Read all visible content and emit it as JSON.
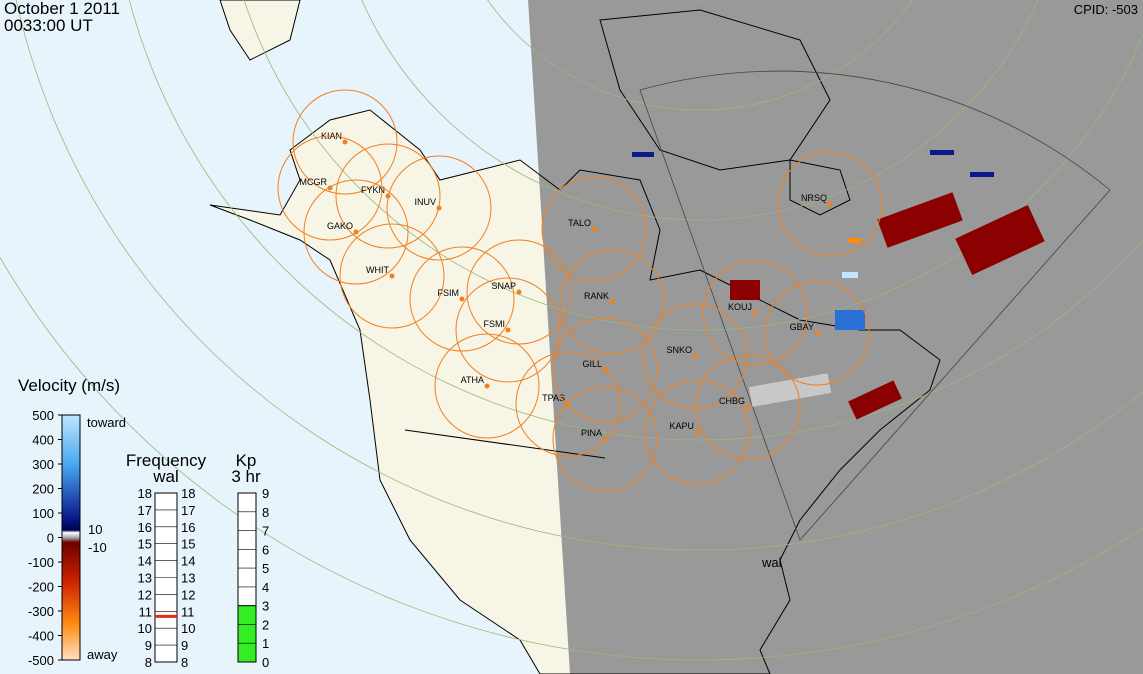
{
  "header": {
    "date": "October 1 2011",
    "time": "0033:00 UT",
    "cpid": "CPID:  -503"
  },
  "stations": [
    "KIAN",
    "MCGR",
    "FYKN",
    "GAKO",
    "INUV",
    "WHIT",
    "FSIM",
    "SNAP",
    "FSMI",
    "ATHA",
    "TPAS",
    "PINA",
    "TALO",
    "RANK",
    "GILL",
    "SNKO",
    "KAPU",
    "CHBG",
    "KOUJ",
    "GBAY",
    "NRSQ"
  ],
  "radar_label": "wal",
  "velocity_scale": {
    "title": "Velocity (m/s)",
    "ticks": [
      500,
      400,
      300,
      200,
      100,
      0,
      -100,
      -200,
      -300,
      -400,
      -500
    ],
    "toward": "toward",
    "away": "away",
    "gap_labels": [
      "10",
      "-10"
    ]
  },
  "frequency_scale": {
    "title": "Frequency",
    "radar": "wal",
    "ticks": [
      8,
      9,
      10,
      11,
      12,
      13,
      14,
      15,
      16,
      17,
      18
    ],
    "value": 10.7
  },
  "kp_scale": {
    "title": "Kp",
    "period": "3 hr",
    "ticks": [
      0,
      1,
      2,
      3,
      4,
      5,
      6,
      7,
      8,
      9
    ],
    "value": 3
  }
}
